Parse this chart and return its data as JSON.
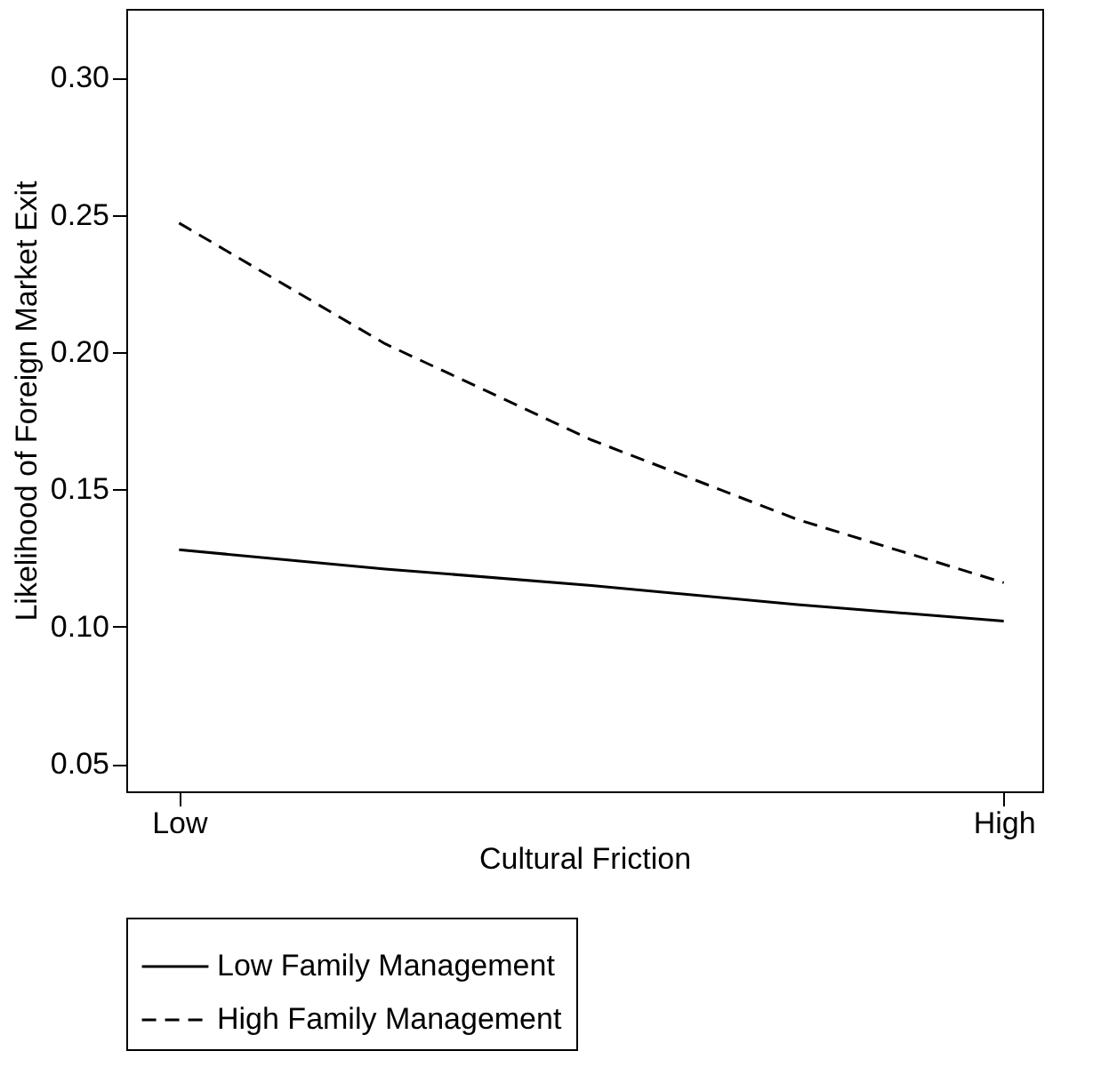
{
  "chart_data": {
    "type": "line",
    "xlabel": "Cultural Friction",
    "ylabel": "Likelihood of Foreign Market Exit",
    "categories": [
      "Low",
      null,
      null,
      null,
      "High"
    ],
    "ylim": [
      0.04,
      0.325
    ],
    "yticks": [
      0.05,
      {
        "value": 0.1,
        "label": "0.10"
      },
      0.15,
      {
        "value": 0.2,
        "label": "0.20"
      },
      0.25,
      {
        "value": 0.3,
        "label": "0.30"
      }
    ],
    "series": [
      {
        "name": "Low Family Management",
        "color": "#000000",
        "line_style": "solid",
        "values": [
          0.128,
          0.121,
          0.115,
          0.108,
          0.102
        ]
      },
      {
        "name": "High Family Management",
        "color": "#000000",
        "line_style": "dashed",
        "values": [
          0.247,
          0.203,
          0.168,
          0.139,
          0.116
        ]
      }
    ],
    "grid": false,
    "legend": "bottom",
    "marker": "none"
  }
}
